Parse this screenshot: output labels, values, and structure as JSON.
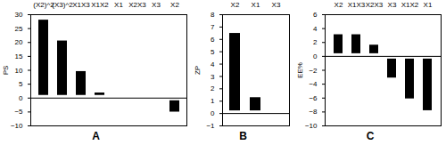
{
  "chart_data": [
    {
      "type": "bar",
      "title": "A",
      "y_label": "PS",
      "categories": [
        "(X2)^2",
        "(X3)^2",
        "X1X3",
        "X1X2",
        "X1",
        "X2X3",
        "X3",
        "X2"
      ],
      "values": [
        29,
        21.5,
        10.5,
        2.8,
        1,
        -0.5,
        -0.8,
        -6
      ],
      "color": "#000000",
      "ylim": [
        -10,
        30
      ],
      "yticks": [
        -10,
        -5,
        0,
        5,
        10,
        15,
        20,
        25,
        30
      ],
      "grid": false
    },
    {
      "type": "bar",
      "title": "B",
      "y_label": "ZP",
      "categories": [
        "X2",
        "X1",
        "X3"
      ],
      "values": [
        6.7,
        1.5,
        -0.4
      ],
      "color": "#000000",
      "ylim": [
        -1,
        8
      ],
      "yticks": [
        -1,
        0,
        1,
        2,
        3,
        4,
        5,
        6,
        7,
        8
      ],
      "grid": false
    },
    {
      "type": "bar",
      "title": "C",
      "y_label": "EE%",
      "categories": [
        "X2",
        "X1X3",
        "X2X3",
        "X3",
        "X1X2",
        "X1"
      ],
      "values": [
        3.5,
        3.5,
        2,
        -3.5,
        -6.5,
        -8.2
      ],
      "color": "#000000",
      "ylim": [
        -10,
        6
      ],
      "yticks": [
        -10,
        -8,
        -6,
        -4,
        -2,
        0,
        2,
        4,
        6
      ],
      "grid": false
    }
  ]
}
